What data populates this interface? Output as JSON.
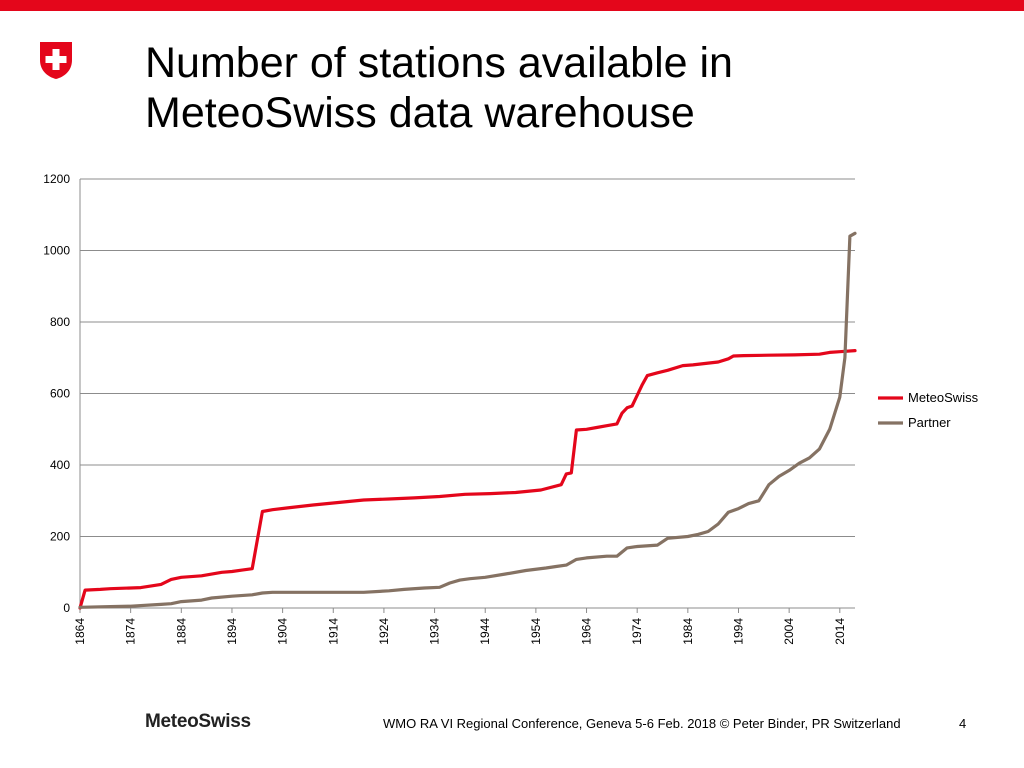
{
  "slide": {
    "title_line1": "Number of stations available in",
    "title_line2": "MeteoSwiss data warehouse",
    "footer_brand": "MeteoSwiss",
    "footer_text": "WMO RA VI Regional Conference, Geneva 5-6 Feb. 2018 © Peter Binder, PR Switzerland",
    "page_number": "4",
    "accent_color": "#e4061b"
  },
  "chart_data": {
    "type": "line",
    "title": "",
    "xlabel": "",
    "ylabel": "",
    "xlim": [
      1864,
      2017
    ],
    "ylim": [
      0,
      1200
    ],
    "y_ticks": [
      0,
      200,
      400,
      600,
      800,
      1000,
      1200
    ],
    "x_tick_labels": [
      "1864",
      "1874",
      "1884",
      "1894",
      "1904",
      "1914",
      "1924",
      "1934",
      "1944",
      "1954",
      "1964",
      "1974",
      "1984",
      "1994",
      "2004",
      "2014"
    ],
    "grid": "horizontal",
    "legend_position": "right",
    "series": [
      {
        "name": "MeteoSwiss",
        "color": "#e4061b",
        "points": [
          [
            1864,
            0
          ],
          [
            1865,
            50
          ],
          [
            1868,
            52
          ],
          [
            1870,
            54
          ],
          [
            1872,
            55
          ],
          [
            1874,
            56
          ],
          [
            1876,
            57
          ],
          [
            1880,
            66
          ],
          [
            1882,
            80
          ],
          [
            1884,
            86
          ],
          [
            1888,
            90
          ],
          [
            1892,
            100
          ],
          [
            1894,
            102
          ],
          [
            1896,
            106
          ],
          [
            1898,
            110
          ],
          [
            1900,
            270
          ],
          [
            1902,
            275
          ],
          [
            1905,
            280
          ],
          [
            1910,
            288
          ],
          [
            1915,
            295
          ],
          [
            1920,
            302
          ],
          [
            1925,
            305
          ],
          [
            1930,
            308
          ],
          [
            1935,
            312
          ],
          [
            1940,
            318
          ],
          [
            1945,
            320
          ],
          [
            1950,
            323
          ],
          [
            1955,
            330
          ],
          [
            1959,
            345
          ],
          [
            1960,
            375
          ],
          [
            1961,
            378
          ],
          [
            1962,
            498
          ],
          [
            1964,
            500
          ],
          [
            1966,
            505
          ],
          [
            1968,
            510
          ],
          [
            1970,
            515
          ],
          [
            1971,
            545
          ],
          [
            1972,
            560
          ],
          [
            1973,
            565
          ],
          [
            1975,
            625
          ],
          [
            1976,
            650
          ],
          [
            1978,
            658
          ],
          [
            1980,
            665
          ],
          [
            1983,
            678
          ],
          [
            1985,
            680
          ],
          [
            1988,
            685
          ],
          [
            1990,
            688
          ],
          [
            1992,
            697
          ],
          [
            1993,
            705
          ],
          [
            1995,
            706
          ],
          [
            2000,
            707
          ],
          [
            2005,
            708
          ],
          [
            2010,
            710
          ],
          [
            2012,
            715
          ],
          [
            2014,
            717
          ],
          [
            2017,
            720
          ]
        ]
      },
      {
        "name": "Partner",
        "color": "#857263",
        "points": [
          [
            1864,
            2
          ],
          [
            1870,
            4
          ],
          [
            1874,
            5
          ],
          [
            1880,
            10
          ],
          [
            1882,
            12
          ],
          [
            1884,
            18
          ],
          [
            1888,
            22
          ],
          [
            1890,
            28
          ],
          [
            1894,
            33
          ],
          [
            1898,
            37
          ],
          [
            1900,
            42
          ],
          [
            1902,
            44
          ],
          [
            1905,
            44
          ],
          [
            1910,
            44
          ],
          [
            1915,
            44
          ],
          [
            1920,
            44
          ],
          [
            1925,
            48
          ],
          [
            1928,
            52
          ],
          [
            1932,
            56
          ],
          [
            1935,
            58
          ],
          [
            1937,
            70
          ],
          [
            1939,
            78
          ],
          [
            1941,
            82
          ],
          [
            1944,
            86
          ],
          [
            1948,
            95
          ],
          [
            1952,
            105
          ],
          [
            1956,
            112
          ],
          [
            1958,
            116
          ],
          [
            1960,
            120
          ],
          [
            1962,
            136
          ],
          [
            1964,
            140
          ],
          [
            1968,
            145
          ],
          [
            1970,
            145
          ],
          [
            1972,
            168
          ],
          [
            1974,
            172
          ],
          [
            1978,
            176
          ],
          [
            1980,
            195
          ],
          [
            1984,
            200
          ],
          [
            1986,
            206
          ],
          [
            1988,
            214
          ],
          [
            1990,
            235
          ],
          [
            1992,
            268
          ],
          [
            1994,
            278
          ],
          [
            1996,
            292
          ],
          [
            1998,
            300
          ],
          [
            2000,
            345
          ],
          [
            2002,
            368
          ],
          [
            2004,
            385
          ],
          [
            2006,
            405
          ],
          [
            2008,
            420
          ],
          [
            2010,
            445
          ],
          [
            2012,
            500
          ],
          [
            2014,
            590
          ],
          [
            2015,
            700
          ],
          [
            2016,
            1040
          ],
          [
            2017,
            1048
          ]
        ]
      }
    ]
  }
}
